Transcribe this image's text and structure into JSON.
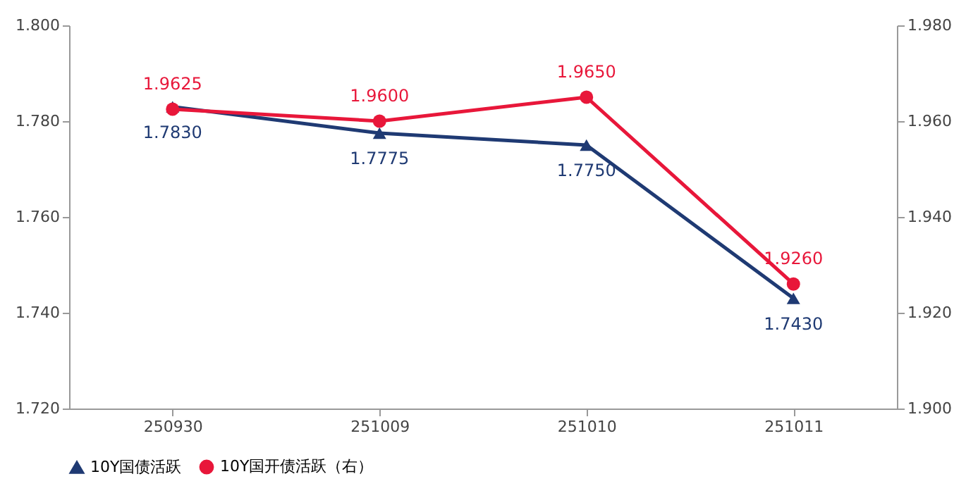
{
  "chart_data": {
    "type": "line",
    "categories": [
      "250930",
      "251009",
      "251010",
      "251011"
    ],
    "series": [
      {
        "name": "10Y国债活跃",
        "color": "#1f3a73",
        "marker": "triangle",
        "values": [
          1.783,
          1.7775,
          1.775,
          1.743
        ],
        "value_labels": [
          "1.7830",
          "1.7775",
          "1.7750",
          "1.7430"
        ]
      },
      {
        "name": "10Y国开债活跃（右）",
        "color": "#e8173a",
        "marker": "circle",
        "axis": "y2",
        "values": [
          1.9625,
          1.96,
          1.965,
          1.926
        ],
        "value_labels": [
          "1.9625",
          "1.9600",
          "1.9650",
          "1.9260"
        ]
      }
    ],
    "ylim": [
      1.72,
      1.8
    ],
    "yticks": [
      {
        "value": 1.72,
        "label": "1.720"
      },
      {
        "value": 1.74,
        "label": "1.740"
      },
      {
        "value": 1.76,
        "label": "1.760"
      },
      {
        "value": 1.78,
        "label": "1.780"
      },
      {
        "value": 1.8,
        "label": "1.800"
      }
    ],
    "y2lim": [
      1.9,
      1.98
    ],
    "y2ticks": [
      {
        "value": 1.9,
        "label": "1.900"
      },
      {
        "value": 1.92,
        "label": "1.920"
      },
      {
        "value": 1.94,
        "label": "1.940"
      },
      {
        "value": 1.96,
        "label": "1.960"
      },
      {
        "value": 1.98,
        "label": "1.980"
      }
    ],
    "grid": false,
    "legend": "bottom",
    "line_style": "solid"
  }
}
